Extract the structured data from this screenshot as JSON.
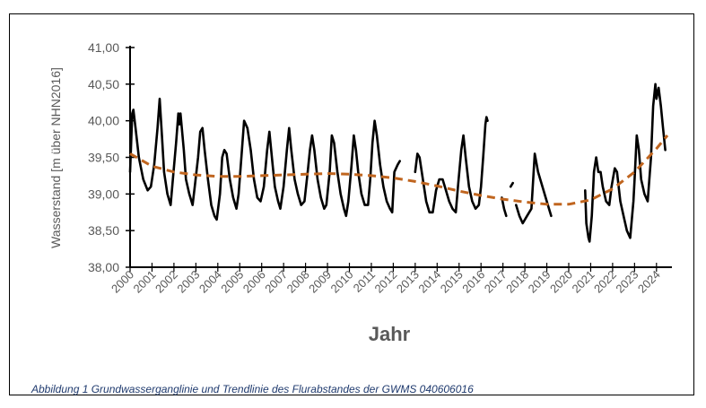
{
  "chart_data": {
    "type": "line",
    "title": "",
    "xlabel": "Jahr",
    "ylabel": "Wasserstand [m über NHN2016]",
    "ylim": [
      38.0,
      41.0
    ],
    "xlim": [
      2000,
      2024.6
    ],
    "y_ticks": [
      "38,00",
      "38,50",
      "39,00",
      "39,50",
      "40,00",
      "40,50",
      "41,00"
    ],
    "x_ticks": [
      "2000",
      "2001",
      "2002",
      "2003",
      "2004",
      "2005",
      "2006",
      "2007",
      "2008",
      "2009",
      "2010",
      "2011",
      "2012",
      "2013",
      "2014",
      "2015",
      "2016",
      "2017",
      "2018",
      "2019",
      "2020",
      "2021",
      "2022",
      "2023",
      "2024"
    ],
    "grid": false,
    "colors": {
      "series": "#000000",
      "trend": "#c0651f"
    },
    "series": [
      {
        "segments": [
          [
            [
              2000.0,
              39.3
            ],
            [
              2000.1,
              40.1
            ],
            [
              2000.15,
              40.15
            ],
            [
              2000.25,
              39.9
            ],
            [
              2000.4,
              39.5
            ],
            [
              2000.6,
              39.2
            ],
            [
              2000.8,
              39.05
            ],
            [
              2000.95,
              39.1
            ],
            [
              2001.1,
              39.4
            ],
            [
              2001.25,
              39.9
            ],
            [
              2001.35,
              40.3
            ],
            [
              2001.45,
              39.8
            ],
            [
              2001.55,
              39.3
            ],
            [
              2001.7,
              39.0
            ],
            [
              2001.85,
              38.85
            ],
            [
              2001.95,
              39.2
            ],
            [
              2002.1,
              39.7
            ],
            [
              2002.2,
              40.1
            ],
            [
              2002.25,
              39.95
            ],
            [
              2002.3,
              40.1
            ],
            [
              2002.45,
              39.6
            ],
            [
              2002.55,
              39.2
            ],
            [
              2002.7,
              39.0
            ],
            [
              2002.85,
              38.85
            ],
            [
              2002.95,
              39.1
            ],
            [
              2003.1,
              39.5
            ],
            [
              2003.2,
              39.85
            ],
            [
              2003.3,
              39.9
            ],
            [
              2003.4,
              39.6
            ],
            [
              2003.55,
              39.2
            ],
            [
              2003.7,
              38.85
            ],
            [
              2003.85,
              38.7
            ],
            [
              2003.95,
              38.65
            ],
            [
              2004.1,
              39.0
            ],
            [
              2004.2,
              39.5
            ],
            [
              2004.3,
              39.6
            ],
            [
              2004.4,
              39.55
            ],
            [
              2004.55,
              39.2
            ],
            [
              2004.7,
              38.95
            ],
            [
              2004.85,
              38.8
            ],
            [
              2004.95,
              39.0
            ],
            [
              2005.1,
              39.6
            ],
            [
              2005.2,
              40.0
            ],
            [
              2005.35,
              39.9
            ],
            [
              2005.5,
              39.6
            ],
            [
              2005.65,
              39.2
            ],
            [
              2005.8,
              38.95
            ],
            [
              2005.95,
              38.9
            ],
            [
              2006.1,
              39.1
            ],
            [
              2006.25,
              39.6
            ],
            [
              2006.35,
              39.85
            ],
            [
              2006.4,
              39.7
            ],
            [
              2006.5,
              39.4
            ],
            [
              2006.6,
              39.1
            ],
            [
              2006.75,
              38.9
            ],
            [
              2006.85,
              38.8
            ],
            [
              2007.0,
              39.1
            ],
            [
              2007.15,
              39.6
            ],
            [
              2007.25,
              39.9
            ],
            [
              2007.35,
              39.6
            ],
            [
              2007.5,
              39.2
            ],
            [
              2007.65,
              39.0
            ],
            [
              2007.8,
              38.85
            ],
            [
              2007.95,
              38.9
            ],
            [
              2008.1,
              39.3
            ],
            [
              2008.2,
              39.6
            ],
            [
              2008.3,
              39.8
            ],
            [
              2008.4,
              39.6
            ],
            [
              2008.55,
              39.2
            ],
            [
              2008.7,
              38.95
            ],
            [
              2008.85,
              38.8
            ],
            [
              2008.95,
              38.85
            ],
            [
              2009.1,
              39.3
            ],
            [
              2009.2,
              39.8
            ],
            [
              2009.3,
              39.7
            ],
            [
              2009.45,
              39.3
            ],
            [
              2009.6,
              39.0
            ],
            [
              2009.75,
              38.8
            ],
            [
              2009.85,
              38.7
            ],
            [
              2009.95,
              38.9
            ],
            [
              2010.1,
              39.4
            ],
            [
              2010.2,
              39.8
            ],
            [
              2010.3,
              39.6
            ],
            [
              2010.4,
              39.3
            ],
            [
              2010.55,
              39.0
            ],
            [
              2010.7,
              38.85
            ],
            [
              2010.85,
              38.85
            ],
            [
              2010.95,
              39.2
            ],
            [
              2011.05,
              39.7
            ],
            [
              2011.15,
              40.0
            ],
            [
              2011.25,
              39.8
            ],
            [
              2011.4,
              39.4
            ],
            [
              2011.55,
              39.1
            ],
            [
              2011.7,
              38.9
            ],
            [
              2011.85,
              38.8
            ],
            [
              2011.95,
              38.75
            ],
            [
              2012.05,
              39.3
            ],
            [
              2012.2,
              39.4
            ],
            [
              2012.3,
              39.45
            ]
          ],
          [
            [
              2013.0,
              39.3
            ],
            [
              2013.1,
              39.55
            ],
            [
              2013.2,
              39.5
            ],
            [
              2013.35,
              39.2
            ],
            [
              2013.5,
              38.9
            ],
            [
              2013.65,
              38.75
            ],
            [
              2013.8,
              38.75
            ],
            [
              2013.95,
              39.05
            ],
            [
              2014.1,
              39.2
            ],
            [
              2014.25,
              39.2
            ],
            [
              2014.4,
              39.05
            ],
            [
              2014.55,
              38.9
            ],
            [
              2014.7,
              38.8
            ],
            [
              2014.85,
              38.75
            ],
            [
              2014.95,
              39.1
            ],
            [
              2015.1,
              39.6
            ],
            [
              2015.2,
              39.8
            ],
            [
              2015.3,
              39.5
            ],
            [
              2015.45,
              39.1
            ],
            [
              2015.6,
              38.9
            ],
            [
              2015.75,
              38.8
            ],
            [
              2015.9,
              38.85
            ],
            [
              2016.0,
              39.1
            ],
            [
              2016.1,
              39.5
            ],
            [
              2016.2,
              39.95
            ],
            [
              2016.25,
              40.05
            ],
            [
              2016.3,
              40.0
            ]
          ],
          [
            [
              2016.95,
              38.95
            ],
            [
              2017.05,
              38.8
            ],
            [
              2017.15,
              38.7
            ]
          ],
          [
            [
              2017.35,
              39.1
            ],
            [
              2017.45,
              39.15
            ]
          ],
          [
            [
              2017.6,
              38.85
            ],
            [
              2017.75,
              38.7
            ],
            [
              2017.9,
              38.6
            ],
            [
              2018.1,
              38.7
            ],
            [
              2018.3,
              38.8
            ],
            [
              2018.45,
              39.55
            ],
            [
              2018.6,
              39.3
            ],
            [
              2018.8,
              39.1
            ],
            [
              2019.0,
              38.9
            ],
            [
              2019.2,
              38.7
            ]
          ],
          [
            [
              2020.75,
              39.05
            ],
            [
              2020.8,
              38.6
            ],
            [
              2020.9,
              38.4
            ],
            [
              2020.95,
              38.35
            ],
            [
              2021.05,
              38.7
            ],
            [
              2021.15,
              39.3
            ],
            [
              2021.25,
              39.5
            ],
            [
              2021.35,
              39.3
            ],
            [
              2021.45,
              39.3
            ],
            [
              2021.55,
              39.1
            ],
            [
              2021.7,
              38.9
            ],
            [
              2021.85,
              38.85
            ],
            [
              2021.95,
              39.1
            ],
            [
              2022.1,
              39.35
            ],
            [
              2022.2,
              39.3
            ],
            [
              2022.35,
              38.9
            ],
            [
              2022.5,
              38.7
            ],
            [
              2022.65,
              38.5
            ],
            [
              2022.8,
              38.4
            ],
            [
              2022.95,
              38.9
            ],
            [
              2023.0,
              39.2
            ],
            [
              2023.05,
              39.5
            ],
            [
              2023.1,
              39.8
            ],
            [
              2023.2,
              39.6
            ],
            [
              2023.3,
              39.2
            ],
            [
              2023.45,
              39.0
            ],
            [
              2023.6,
              38.9
            ],
            [
              2023.75,
              39.5
            ],
            [
              2023.85,
              40.2
            ],
            [
              2023.95,
              40.5
            ],
            [
              2024.0,
              40.3
            ],
            [
              2024.1,
              40.45
            ],
            [
              2024.2,
              40.2
            ],
            [
              2024.3,
              39.9
            ],
            [
              2024.4,
              39.6
            ]
          ]
        ]
      },
      {
        "style": "dashed",
        "points": [
          [
            2000.0,
            39.55
          ],
          [
            2001.0,
            39.38
          ],
          [
            2002.0,
            39.3
          ],
          [
            2003.0,
            39.26
          ],
          [
            2004.0,
            39.24
          ],
          [
            2005.0,
            39.24
          ],
          [
            2006.0,
            39.25
          ],
          [
            2007.0,
            39.26
          ],
          [
            2008.0,
            39.27
          ],
          [
            2009.0,
            39.28
          ],
          [
            2010.0,
            39.27
          ],
          [
            2011.0,
            39.25
          ],
          [
            2012.0,
            39.22
          ],
          [
            2013.0,
            39.17
          ],
          [
            2014.0,
            39.11
          ],
          [
            2015.0,
            39.04
          ],
          [
            2016.0,
            38.98
          ],
          [
            2017.0,
            38.93
          ],
          [
            2018.0,
            38.89
          ],
          [
            2019.0,
            38.86
          ],
          [
            2020.0,
            38.86
          ],
          [
            2021.0,
            38.92
          ],
          [
            2022.0,
            39.07
          ],
          [
            2023.0,
            39.3
          ],
          [
            2024.0,
            39.62
          ],
          [
            2024.5,
            39.8
          ]
        ]
      }
    ]
  },
  "caption": "Abbildung 1 Grundwasserganglinie und Trendlinie des Flurabstandes der GWMS 040606016"
}
